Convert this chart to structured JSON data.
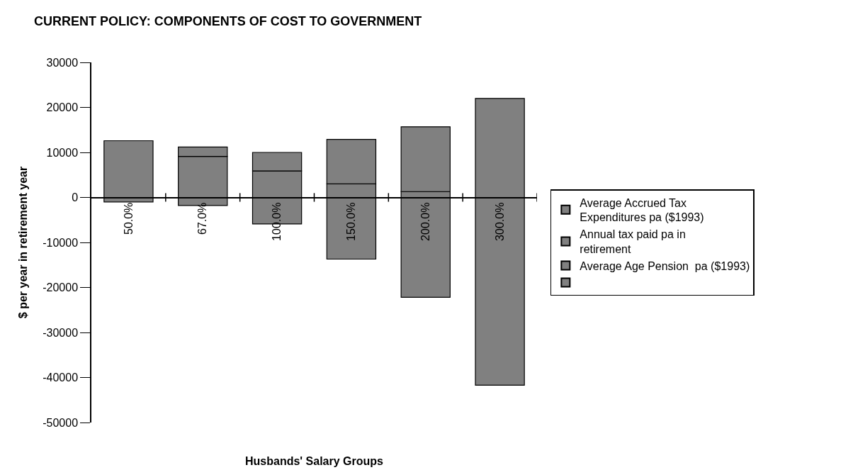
{
  "chart_data": {
    "type": "bar",
    "title": "CURRENT POLICY: COMPONENTS OF COST TO GOVERNMENT",
    "xlabel": "Husbands' Salary Groups",
    "ylabel": "$ per year in retirement year",
    "categories": [
      "50.0%",
      "67.0%",
      "100.0%",
      "150.0%",
      "200.0%",
      "300.0%"
    ],
    "stacked": true,
    "series": [
      {
        "color": "#808080",
        "values": [
          null,
          null,
          null,
          null,
          null,
          null
        ]
      },
      {
        "name": "Average Age Pension  pa ($1993)",
        "color": "#808080",
        "values": [
          12600,
          9100,
          5900,
          3000,
          1300,
          null
        ]
      },
      {
        "name": "Annual tax paid pa in retirement",
        "color": "#808080",
        "values": [
          -1000,
          -1800,
          -5900,
          -13700,
          -22200,
          -41700
        ]
      },
      {
        "name": "Average Accrued Tax Expenditures pa ($1993)",
        "color": "#808080",
        "values": [
          null,
          2100,
          4100,
          9900,
          14400,
          22000
        ]
      }
    ],
    "ylim": [
      -50000,
      30000
    ],
    "yticks": [
      -50000,
      -40000,
      -30000,
      -20000,
      -10000,
      0,
      10000,
      20000,
      30000
    ],
    "legend": "right"
  }
}
